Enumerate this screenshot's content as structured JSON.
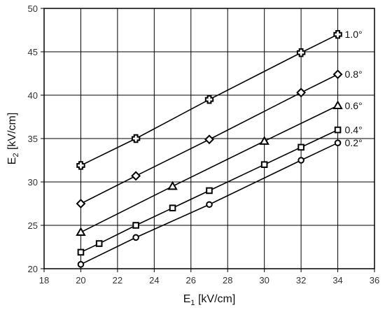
{
  "chart_data": {
    "type": "line",
    "xlabel": {
      "main": "E",
      "sub": "1",
      "rest": " [kV/cm]"
    },
    "ylabel": {
      "main": "E",
      "sub": "2",
      "rest": " [kV/cm]"
    },
    "xlim": [
      18,
      36
    ],
    "ylim": [
      20,
      50
    ],
    "xticks": [
      18,
      20,
      22,
      24,
      26,
      28,
      30,
      32,
      34,
      36
    ],
    "yticks": [
      20,
      25,
      30,
      35,
      40,
      45,
      50
    ],
    "grid": true,
    "series": [
      {
        "name": "1.0°",
        "marker": "cross",
        "x": [
          20,
          23,
          27,
          32,
          34
        ],
        "y": [
          31.9,
          35.0,
          39.5,
          44.9,
          47.0
        ]
      },
      {
        "name": "0.8°",
        "marker": "diamond",
        "x": [
          20,
          23,
          27,
          32,
          34
        ],
        "y": [
          27.5,
          30.7,
          34.9,
          40.3,
          42.4
        ]
      },
      {
        "name": "0.6°",
        "marker": "triangle",
        "x": [
          20,
          25,
          30,
          34
        ],
        "y": [
          24.2,
          29.5,
          34.7,
          38.8
        ]
      },
      {
        "name": "0.4°",
        "marker": "square",
        "x": [
          20,
          21,
          23,
          25,
          27,
          30,
          32,
          34
        ],
        "y": [
          21.9,
          22.9,
          25.0,
          27.0,
          29.0,
          32.0,
          34.0,
          36.0
        ]
      },
      {
        "name": "0.2°",
        "marker": "circle",
        "x": [
          20,
          23,
          27,
          32,
          34
        ],
        "y": [
          20.5,
          23.6,
          27.4,
          32.5,
          34.5
        ]
      }
    ]
  }
}
